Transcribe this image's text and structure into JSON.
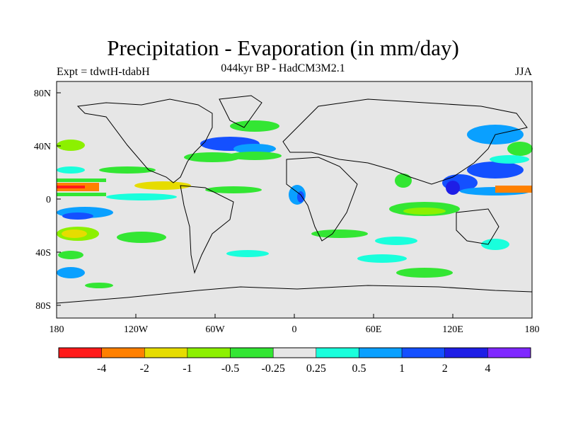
{
  "header": {
    "title": "Precipitation - Evaporation (in mm/day)",
    "subtitle": "044kyr BP - HadCM3M2.1",
    "left_label": "Expt = tdwtH-tdabH",
    "right_label": "JJA"
  },
  "map": {
    "ocean_color": "#e6e6e6",
    "coast_color": "#000000",
    "lat_ticks": [
      "80N",
      "40N",
      "0",
      "40S",
      "80S"
    ],
    "lon_ticks": [
      "180",
      "120W",
      "60W",
      "0",
      "60E",
      "120E",
      "180"
    ]
  },
  "colorbar": {
    "colors": [
      "#ff1a1a",
      "#ff8000",
      "#e6dc00",
      "#8cf000",
      "#33e633",
      "#e6e6e6",
      "#19ffdc",
      "#0aa0ff",
      "#1450ff",
      "#1e1ee6",
      "#7f28ff"
    ],
    "labels": [
      "-4",
      "-2",
      "-1",
      "-0.5",
      "-0.25",
      "0.25",
      "0.5",
      "1",
      "2",
      "4"
    ]
  }
}
